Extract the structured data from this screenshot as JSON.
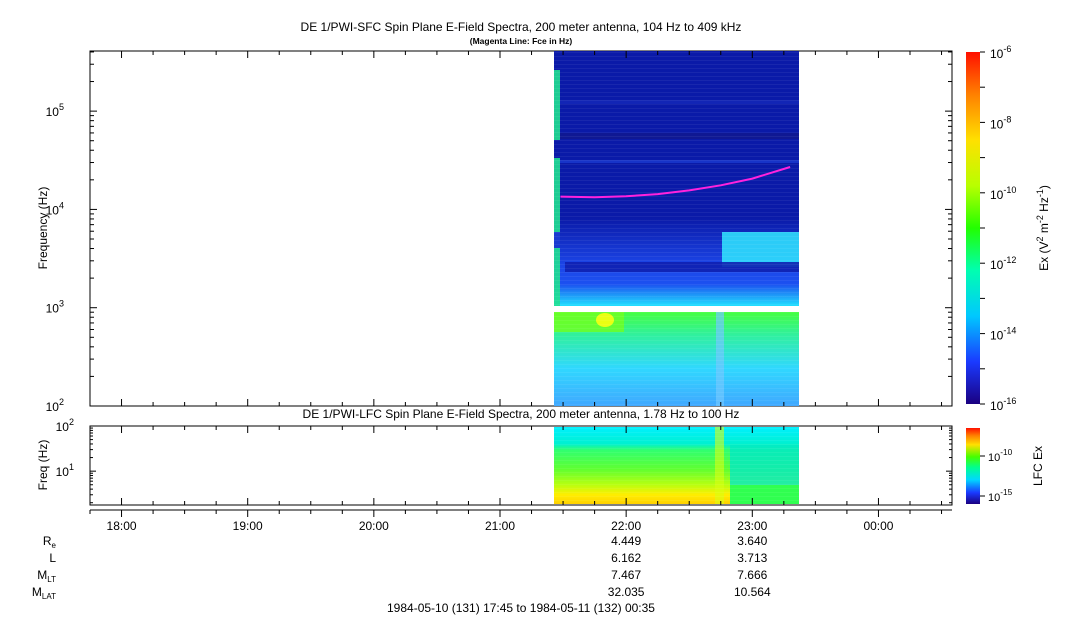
{
  "chart_data": [
    {
      "type": "heatmap",
      "title": "DE 1/PWI-SFC  Spin Plane E-Field Spectra, 200 meter antenna, 104 Hz to 409 kHz",
      "subtitle": "(Magenta Line: Fce in Hz)",
      "ylabel": "Frequency (Hz)",
      "yscale": "log",
      "ylim": [
        100,
        409000
      ],
      "y_ticks": [
        {
          "value": 100,
          "base": "10",
          "exp": "2"
        },
        {
          "value": 1000,
          "base": "10",
          "exp": "3"
        },
        {
          "value": 10000,
          "base": "10",
          "exp": "4"
        },
        {
          "value": 100000,
          "base": "10",
          "exp": "5"
        }
      ],
      "data_time_range_hours": [
        21.43,
        23.33
      ],
      "colorbar": {
        "label_parts": [
          "Ex (V",
          "2",
          " m",
          "-2",
          " Hz",
          "-1",
          ")"
        ],
        "scale": "log",
        "range": [
          1e-16,
          1e-06
        ],
        "ticks": [
          {
            "value": 1e-06,
            "base": "10",
            "exp": "-6"
          },
          {
            "value": 1e-08,
            "base": "10",
            "exp": "-8"
          },
          {
            "value": 1e-10,
            "base": "10",
            "exp": "-10"
          },
          {
            "value": 1e-12,
            "base": "10",
            "exp": "-12"
          },
          {
            "value": 1e-14,
            "base": "10",
            "exp": "-14"
          },
          {
            "value": 1e-16,
            "base": "10",
            "exp": "-16"
          }
        ]
      },
      "fce_line": {
        "color": "#ff22dd",
        "points": [
          {
            "t": 21.48,
            "f": 13500
          },
          {
            "t": 21.75,
            "f": 13300
          },
          {
            "t": 22.0,
            "f": 13600
          },
          {
            "t": 22.25,
            "f": 14300
          },
          {
            "t": 22.5,
            "f": 15600
          },
          {
            "t": 22.75,
            "f": 17600
          },
          {
            "t": 23.0,
            "f": 20600
          },
          {
            "t": 23.3,
            "f": 27000
          }
        ]
      }
    },
    {
      "type": "heatmap",
      "title": "DE 1/PWI-LFC  Spin Plane E-Field Spectra, 200 meter antenna, 1.78 Hz to 100 Hz",
      "ylabel": "Freq (Hz)",
      "yscale": "log",
      "ylim": [
        1.78,
        100
      ],
      "y_ticks": [
        {
          "value": 10,
          "base": "10",
          "exp": "1"
        },
        {
          "value": 100,
          "base": "10",
          "exp": "2"
        }
      ],
      "data_time_range_hours": [
        21.43,
        23.33
      ],
      "colorbar": {
        "label": "LFC Ex",
        "scale": "log",
        "ticks": [
          {
            "value": 1e-10,
            "base": "10",
            "exp": "-10"
          },
          {
            "value": 1e-15,
            "base": "10",
            "exp": "-15"
          }
        ]
      }
    }
  ],
  "time_axis": {
    "start_hours": 17.75,
    "end_hours": 24.583,
    "major_ticks": [
      {
        "t": 18,
        "label": "18:00"
      },
      {
        "t": 19,
        "label": "19:00"
      },
      {
        "t": 20,
        "label": "20:00"
      },
      {
        "t": 21,
        "label": "21:00"
      },
      {
        "t": 22,
        "label": "22:00"
      },
      {
        "t": 23,
        "label": "23:00"
      },
      {
        "t": 24,
        "label": "00:00"
      }
    ]
  },
  "ephemeris": {
    "rows": [
      {
        "label": "R",
        "sub": "e",
        "values": {
          "22": "4.449",
          "23": "3.640"
        }
      },
      {
        "label": "L",
        "sub": "",
        "values": {
          "22": "6.162",
          "23": "3.713"
        }
      },
      {
        "label": "M",
        "sub": "LT",
        "values": {
          "22": "7.467",
          "23": "7.666"
        }
      },
      {
        "label": "M",
        "sub": "LAT",
        "values": {
          "22": "32.035",
          "23": "10.564"
        }
      }
    ]
  },
  "footer": "1984-05-10 (131) 17:45 to 1984-05-11 (132) 00:35",
  "colors": {
    "background": "#ffffff",
    "panel_background_sfc": "#0a1aa8",
    "fce_line": "#ff22dd"
  }
}
